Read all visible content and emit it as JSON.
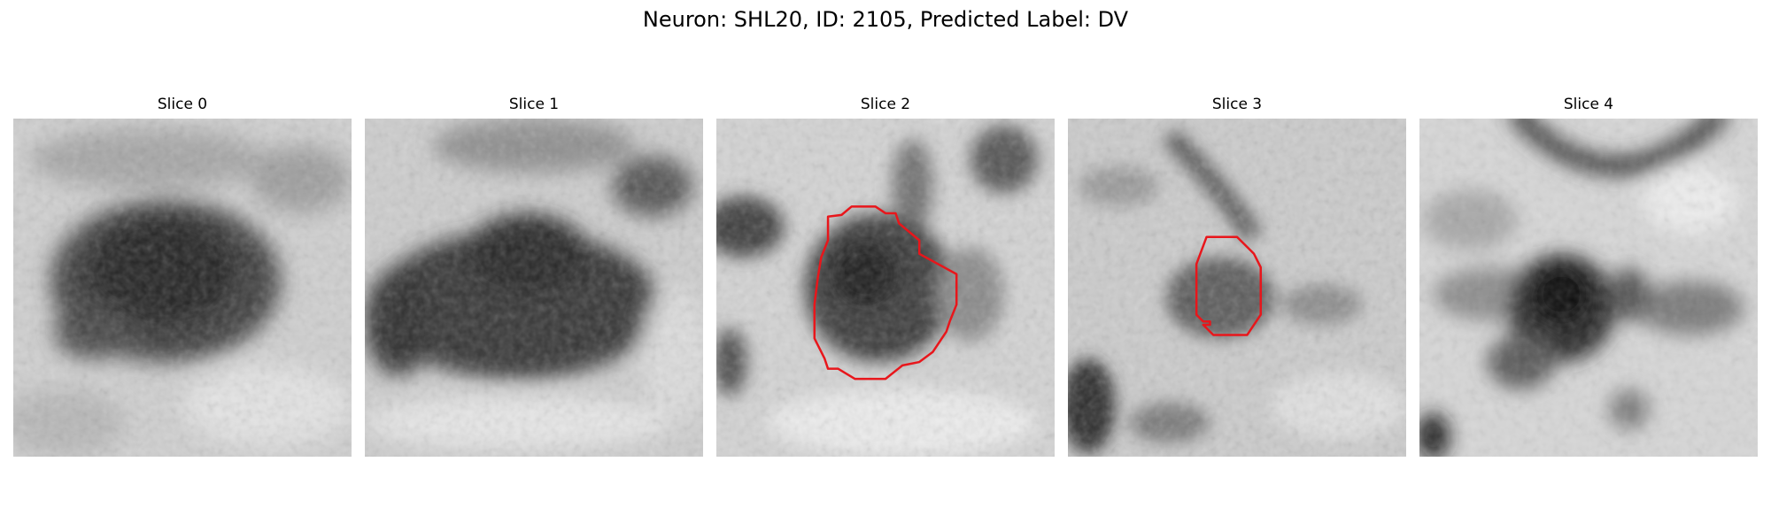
{
  "figure": {
    "title": "Neuron: SHL20, ID: 2105, Predicted Label: DV"
  },
  "slices": [
    {
      "label": "Slice 0",
      "has_contour": false
    },
    {
      "label": "Slice 1",
      "has_contour": false
    },
    {
      "label": "Slice 2",
      "has_contour": true
    },
    {
      "label": "Slice 3",
      "has_contour": true
    },
    {
      "label": "Slice 4",
      "has_contour": false
    }
  ],
  "colors": {
    "contour": "#e8161b",
    "background": "#ffffff"
  }
}
